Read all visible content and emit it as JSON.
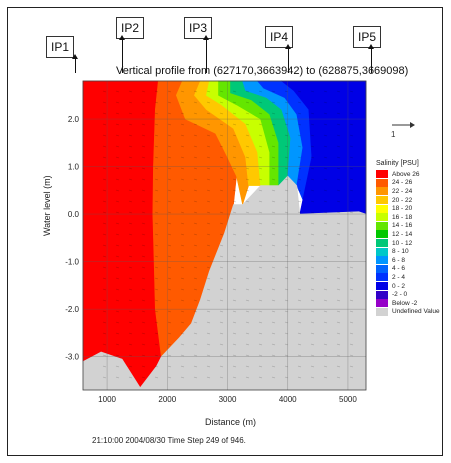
{
  "markers": [
    {
      "label": "IP1"
    },
    {
      "label": "IP2"
    },
    {
      "label": "IP3"
    },
    {
      "label": "IP4"
    },
    {
      "label": "IP5"
    }
  ],
  "scale_arrow_label": "1",
  "footer": "21:10:00 2004/08/30  Time Step 249 of 946.",
  "chart_data": {
    "type": "heatmap",
    "title": "Vertical profile from (627170,3663942) to (628875,3669098)",
    "xlabel": "Distance (m)",
    "ylabel": "Water level (m)",
    "xlim": [
      600,
      5300
    ],
    "ylim": [
      -3.7,
      2.8
    ],
    "x_ticks": [
      "1000",
      "2000",
      "3000",
      "4000",
      "5000"
    ],
    "y_ticks": [
      "2.0",
      "1.0",
      "0.0",
      "-1.0",
      "-2.0",
      "-3.0"
    ],
    "grid": true,
    "legend_title": "Salinity [PSU]",
    "legend": [
      {
        "label": "Above 26",
        "color": "#ff0000"
      },
      {
        "label": "24 - 26",
        "color": "#ff5a00"
      },
      {
        "label": "22 - 24",
        "color": "#ff9600"
      },
      {
        "label": "20 - 22",
        "color": "#ffc800"
      },
      {
        "label": "18 - 20",
        "color": "#ffff00"
      },
      {
        "label": "16 - 18",
        "color": "#c8ff00"
      },
      {
        "label": "14 - 16",
        "color": "#64e600"
      },
      {
        "label": "12 - 14",
        "color": "#00c800"
      },
      {
        "label": "10 - 12",
        "color": "#00c878"
      },
      {
        "label": "8 - 10",
        "color": "#00c8c8"
      },
      {
        "label": "6 - 8",
        "color": "#0096ff"
      },
      {
        "label": "4 - 6",
        "color": "#0064ff"
      },
      {
        "label": "2 - 4",
        "color": "#0032ff"
      },
      {
        "label": "0 - 2",
        "color": "#0000e6"
      },
      {
        "label": "-2 - 0",
        "color": "#3200c8"
      },
      {
        "label": "Below -2",
        "color": "#9600c8"
      },
      {
        "label": "Undefined Value",
        "color": "#d2d2d2"
      }
    ],
    "regions": [
      {
        "salinity": "Above 26",
        "color": "#ff0000",
        "polygon": [
          [
            600,
            2.8
          ],
          [
            1850,
            2.8
          ],
          [
            1800,
            2.2
          ],
          [
            1770,
            1.0
          ],
          [
            1760,
            0.0
          ],
          [
            1780,
            -1.0
          ],
          [
            1800,
            -2.0
          ],
          [
            1900,
            -3.0
          ],
          [
            1820,
            -3.2
          ],
          [
            1550,
            -3.65
          ],
          [
            1250,
            -3.05
          ],
          [
            900,
            -2.9
          ],
          [
            600,
            -3.1
          ]
        ]
      },
      {
        "salinity": "24 - 26",
        "color": "#ff5a00",
        "polygon": [
          [
            1850,
            2.8
          ],
          [
            2250,
            2.8
          ],
          [
            2150,
            2.5
          ],
          [
            2300,
            2.0
          ],
          [
            2800,
            1.7
          ],
          [
            3000,
            1.2
          ],
          [
            3150,
            0.8
          ],
          [
            3100,
            0.2
          ],
          [
            2950,
            -0.4
          ],
          [
            2700,
            -1.2
          ],
          [
            2550,
            -1.8
          ],
          [
            2400,
            -2.3
          ],
          [
            2200,
            -2.6
          ],
          [
            1900,
            -3.0
          ],
          [
            1800,
            -2.0
          ],
          [
            1780,
            -1.0
          ],
          [
            1760,
            0.0
          ],
          [
            1770,
            1.0
          ],
          [
            1800,
            2.2
          ]
        ]
      },
      {
        "salinity": "22 - 24",
        "color": "#ff9600",
        "polygon": [
          [
            2250,
            2.8
          ],
          [
            2550,
            2.8
          ],
          [
            2450,
            2.5
          ],
          [
            2650,
            2.2
          ],
          [
            3100,
            1.8
          ],
          [
            3300,
            1.2
          ],
          [
            3350,
            0.6
          ],
          [
            3250,
            0.2
          ],
          [
            3150,
            0.8
          ],
          [
            3000,
            1.2
          ],
          [
            2800,
            1.7
          ],
          [
            2300,
            2.0
          ],
          [
            2150,
            2.5
          ]
        ]
      },
      {
        "salinity": "20 - 22",
        "color": "#ffc800",
        "polygon": [
          [
            2550,
            2.8
          ],
          [
            2700,
            2.8
          ],
          [
            2650,
            2.5
          ],
          [
            2900,
            2.3
          ],
          [
            3300,
            1.9
          ],
          [
            3500,
            1.3
          ],
          [
            3550,
            0.6
          ],
          [
            3350,
            0.6
          ],
          [
            3300,
            1.2
          ],
          [
            3100,
            1.8
          ],
          [
            2650,
            2.2
          ],
          [
            2450,
            2.5
          ]
        ]
      },
      {
        "salinity": "16 - 18",
        "color": "#c8ff00",
        "polygon": [
          [
            2700,
            2.8
          ],
          [
            2850,
            2.8
          ],
          [
            2850,
            2.5
          ],
          [
            3150,
            2.3
          ],
          [
            3550,
            2.0
          ],
          [
            3700,
            1.3
          ],
          [
            3700,
            0.4
          ],
          [
            3550,
            0.6
          ],
          [
            3500,
            1.3
          ],
          [
            3300,
            1.9
          ],
          [
            2900,
            2.3
          ],
          [
            2650,
            2.5
          ]
        ]
      },
      {
        "salinity": "14 - 16",
        "color": "#64e600",
        "polygon": [
          [
            2850,
            2.8
          ],
          [
            3050,
            2.8
          ],
          [
            3050,
            2.55
          ],
          [
            3400,
            2.4
          ],
          [
            3700,
            2.1
          ],
          [
            3850,
            1.5
          ],
          [
            3850,
            0.6
          ],
          [
            3700,
            0.4
          ],
          [
            3700,
            1.3
          ],
          [
            3550,
            2.0
          ],
          [
            3150,
            2.3
          ],
          [
            2850,
            2.5
          ]
        ]
      },
      {
        "salinity": "10 - 12",
        "color": "#00c878",
        "polygon": [
          [
            3050,
            2.8
          ],
          [
            3250,
            2.8
          ],
          [
            3300,
            2.6
          ],
          [
            3650,
            2.45
          ],
          [
            3900,
            2.2
          ],
          [
            4050,
            1.6
          ],
          [
            4000,
            0.8
          ],
          [
            3850,
            0.6
          ],
          [
            3850,
            1.5
          ],
          [
            3700,
            2.1
          ],
          [
            3400,
            2.4
          ],
          [
            3050,
            2.55
          ]
        ]
      },
      {
        "salinity": "6 - 8",
        "color": "#0096ff",
        "polygon": [
          [
            3250,
            2.8
          ],
          [
            3500,
            2.8
          ],
          [
            3600,
            2.65
          ],
          [
            3950,
            2.45
          ],
          [
            4150,
            2.1
          ],
          [
            4250,
            1.4
          ],
          [
            4150,
            0.6
          ],
          [
            4000,
            0.8
          ],
          [
            4050,
            1.6
          ],
          [
            3900,
            2.2
          ],
          [
            3650,
            2.45
          ],
          [
            3300,
            2.6
          ]
        ]
      },
      {
        "salinity": "2 - 4",
        "color": "#0032ff",
        "polygon": [
          [
            3500,
            2.8
          ],
          [
            3900,
            2.8
          ],
          [
            4100,
            2.6
          ],
          [
            4350,
            2.2
          ],
          [
            4400,
            1.2
          ],
          [
            4250,
            0.3
          ],
          [
            4150,
            0.6
          ],
          [
            4250,
            1.4
          ],
          [
            4150,
            2.1
          ],
          [
            3950,
            2.45
          ],
          [
            3600,
            2.65
          ]
        ]
      },
      {
        "salinity": "0 - 2",
        "color": "#0000e6",
        "polygon": [
          [
            3900,
            2.8
          ],
          [
            5300,
            2.8
          ],
          [
            5300,
            0.0
          ],
          [
            5180,
            0.05
          ],
          [
            4200,
            0.0
          ],
          [
            4250,
            0.3
          ],
          [
            4400,
            1.2
          ],
          [
            4350,
            2.2
          ],
          [
            4100,
            2.6
          ]
        ]
      },
      {
        "salinity": "Undefined Value",
        "color": "#d2d2d2",
        "polygon": [
          [
            5300,
            0.0
          ],
          [
            5300,
            -3.7
          ],
          [
            600,
            -3.7
          ],
          [
            600,
            -3.1
          ],
          [
            900,
            -2.9
          ],
          [
            1250,
            -3.05
          ],
          [
            1550,
            -3.65
          ],
          [
            1820,
            -3.2
          ],
          [
            1900,
            -3.0
          ],
          [
            2200,
            -2.6
          ],
          [
            2400,
            -2.3
          ],
          [
            2550,
            -1.8
          ],
          [
            2700,
            -1.2
          ],
          [
            2950,
            -0.4
          ],
          [
            3100,
            0.2
          ],
          [
            3250,
            0.2
          ],
          [
            3550,
            0.6
          ],
          [
            3850,
            0.6
          ],
          [
            4000,
            0.8
          ],
          [
            4150,
            0.6
          ],
          [
            4200,
            0.0
          ],
          [
            5180,
            0.05
          ]
        ]
      }
    ]
  }
}
